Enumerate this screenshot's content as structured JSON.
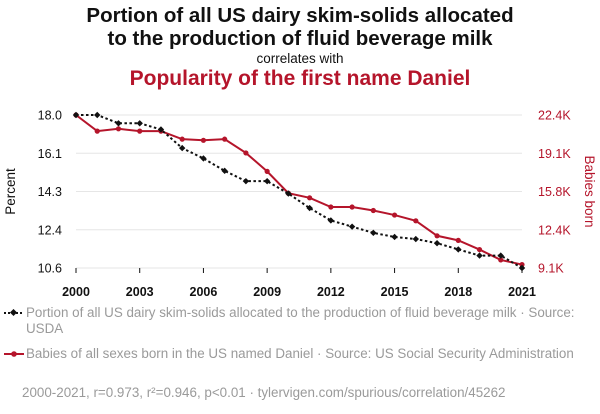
{
  "header": {
    "title_line1": "Portion of all US dairy skim-solids allocated",
    "title_line2": "to the production of fluid beverage milk",
    "correlates": "correlates with",
    "title2": "Popularity of the first name Daniel"
  },
  "legend": {
    "series1": "Portion of all US dairy skim-solids allocated to the production of fluid beverage milk · Source: USDA",
    "series2": "Babies of all sexes born in the US named Daniel · Source: US Social Security Administration"
  },
  "footer": "2000-2021, r=0.973, r²=0.946, p<0.01 · tylervigen.com/spurious/correlation/45262",
  "colors": {
    "series1": "#111111",
    "series2": "#b5152b",
    "grid": "#e6e6e6"
  },
  "chart_data": {
    "type": "line",
    "x": [
      2000,
      2001,
      2002,
      2003,
      2004,
      2005,
      2006,
      2007,
      2008,
      2009,
      2010,
      2011,
      2012,
      2013,
      2014,
      2015,
      2016,
      2017,
      2018,
      2019,
      2020,
      2021
    ],
    "xlim": [
      2000,
      2021
    ],
    "xticks": [
      "2000",
      "2003",
      "2006",
      "2009",
      "2012",
      "2015",
      "2018",
      "2021"
    ],
    "grid": true,
    "series": [
      {
        "name": "Portion of all US dairy skim-solids allocated to the production of fluid beverage milk",
        "axis": "left",
        "style": "dotted",
        "marker": "diamond",
        "values": [
          18.0,
          18.0,
          17.6,
          17.6,
          17.3,
          16.4,
          15.9,
          15.3,
          14.8,
          14.8,
          14.2,
          13.5,
          12.9,
          12.6,
          12.3,
          12.1,
          12.0,
          11.8,
          11.5,
          11.2,
          11.2,
          10.6
        ]
      },
      {
        "name": "Babies of all sexes born in the US named Daniel",
        "axis": "right",
        "style": "solid",
        "marker": "circle",
        "values": [
          22400,
          21000,
          21200,
          21000,
          21000,
          20300,
          20200,
          20300,
          19100,
          17500,
          15600,
          15200,
          14400,
          14400,
          14100,
          13700,
          13200,
          11900,
          11500,
          10700,
          9800,
          9400
        ]
      }
    ],
    "y_left": {
      "label": "Percent",
      "ylim": [
        10.6,
        18.0
      ],
      "ticks": [
        "10.6",
        "12.4",
        "14.3",
        "16.1",
        "18.0"
      ]
    },
    "y_right": {
      "label": "Babies born",
      "ylim": [
        9100,
        22400
      ],
      "ticks": [
        "9.1K",
        "12.4K",
        "15.8K",
        "19.1K",
        "22.4K"
      ]
    }
  }
}
